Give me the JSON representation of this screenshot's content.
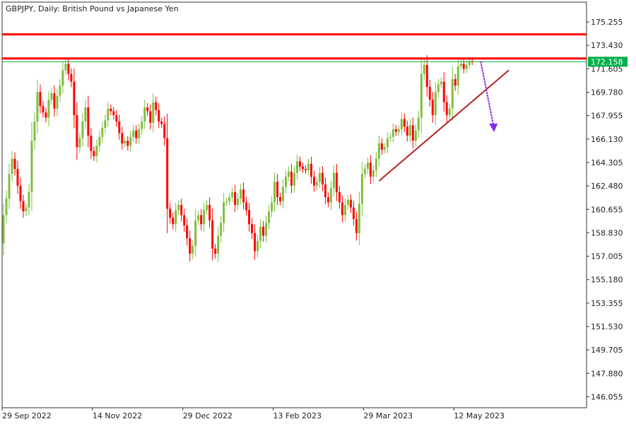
{
  "title": "GBPJPY, Daily:  British Pound vs Japanese Yen",
  "colors": {
    "bull": "#7fbf3f",
    "bear": "#ff0000",
    "level": "#ff0000",
    "bid": "#00b04a",
    "trend": "#b22222",
    "arrow": "#8a2be2",
    "axis": "#333333"
  },
  "chart_data": {
    "type": "candlestick",
    "symbol": "GBPJPY",
    "timeframe": "Daily",
    "ylim": [
      145.2,
      176.8
    ],
    "y_ticks": [
      "175.255",
      "173.430",
      "171.605",
      "169.780",
      "167.955",
      "166.130",
      "164.305",
      "162.480",
      "160.655",
      "158.830",
      "157.005",
      "155.180",
      "153.355",
      "151.530",
      "149.705",
      "147.880",
      "146.055"
    ],
    "x_ticks": [
      {
        "label": "29 Sep 2022",
        "index": 0
      },
      {
        "label": "14 Nov 2022",
        "index": 32
      },
      {
        "label": "29 Dec 2022",
        "index": 64
      },
      {
        "label": "13 Feb 2023",
        "index": 96
      },
      {
        "label": "29 Mar 2023",
        "index": 128
      },
      {
        "label": "12 May 2023",
        "index": 160
      }
    ],
    "x_slots": 207,
    "first_open": 158.0,
    "close": [
      160.2,
      161.5,
      163.4,
      164.6,
      163.8,
      162.5,
      161.3,
      160.5,
      160.8,
      162.0,
      166.0,
      167.5,
      169.8,
      168.7,
      168.2,
      167.8,
      169.2,
      169.7,
      168.5,
      169.5,
      170.3,
      171.5,
      172.0,
      171.2,
      170.6,
      168.0,
      165.5,
      166.2,
      167.5,
      168.6,
      166.4,
      165.2,
      164.8,
      165.6,
      166.3,
      167.0,
      167.6,
      168.5,
      168.3,
      168.0,
      167.5,
      166.6,
      165.8,
      166.0,
      165.6,
      166.3,
      166.8,
      166.2,
      166.9,
      167.5,
      168.6,
      168.3,
      167.4,
      169.0,
      168.4,
      167.5,
      167.3,
      166.2,
      160.7,
      160.0,
      159.5,
      160.6,
      161.0,
      160.2,
      159.4,
      158.4,
      157.2,
      157.8,
      159.8,
      160.2,
      159.5,
      160.6,
      161.0,
      159.8,
      157.6,
      157.2,
      158.6,
      159.6,
      161.2,
      161.3,
      161.6,
      162.0,
      161.0,
      161.5,
      162.2,
      161.2,
      160.6,
      159.5,
      158.8,
      157.4,
      158.2,
      159.3,
      158.6,
      159.6,
      160.5,
      161.2,
      162.8,
      161.6,
      161.3,
      162.4,
      163.2,
      163.6,
      162.5,
      163.5,
      164.4,
      164.0,
      163.8,
      163.7,
      164.2,
      163.2,
      162.5,
      162.8,
      163.5,
      162.6,
      161.6,
      161.2,
      162.3,
      163.5,
      162.0,
      161.2,
      160.2,
      161.0,
      161.4,
      160.8,
      159.9,
      158.8,
      161.1,
      163.4,
      163.8,
      164.3,
      163.2,
      163.7,
      164.6,
      165.8,
      165.3,
      165.5,
      166.2,
      166.3,
      166.9,
      166.7,
      166.9,
      167.7,
      167.1,
      166.4,
      167.2,
      166.0,
      166.8,
      167.8,
      171.2,
      171.9,
      170.2,
      169.2,
      168.0,
      169.8,
      170.4,
      170.6,
      169.0,
      168.0,
      168.5,
      170.8,
      170.3,
      171.8,
      172.0,
      171.6,
      171.9,
      172.2,
      172.158
    ],
    "horizontal_levels": [
      174.29,
      172.41
    ],
    "bid_price": "172.158",
    "trendline": {
      "from": {
        "index": 133,
        "price": 162.87
      },
      "to": {
        "index": 179,
        "price": 171.5
      }
    },
    "arrow": {
      "from": {
        "index": 169,
        "price": 172.19
      },
      "to": {
        "index": 173.5,
        "price": 166.79
      }
    }
  }
}
